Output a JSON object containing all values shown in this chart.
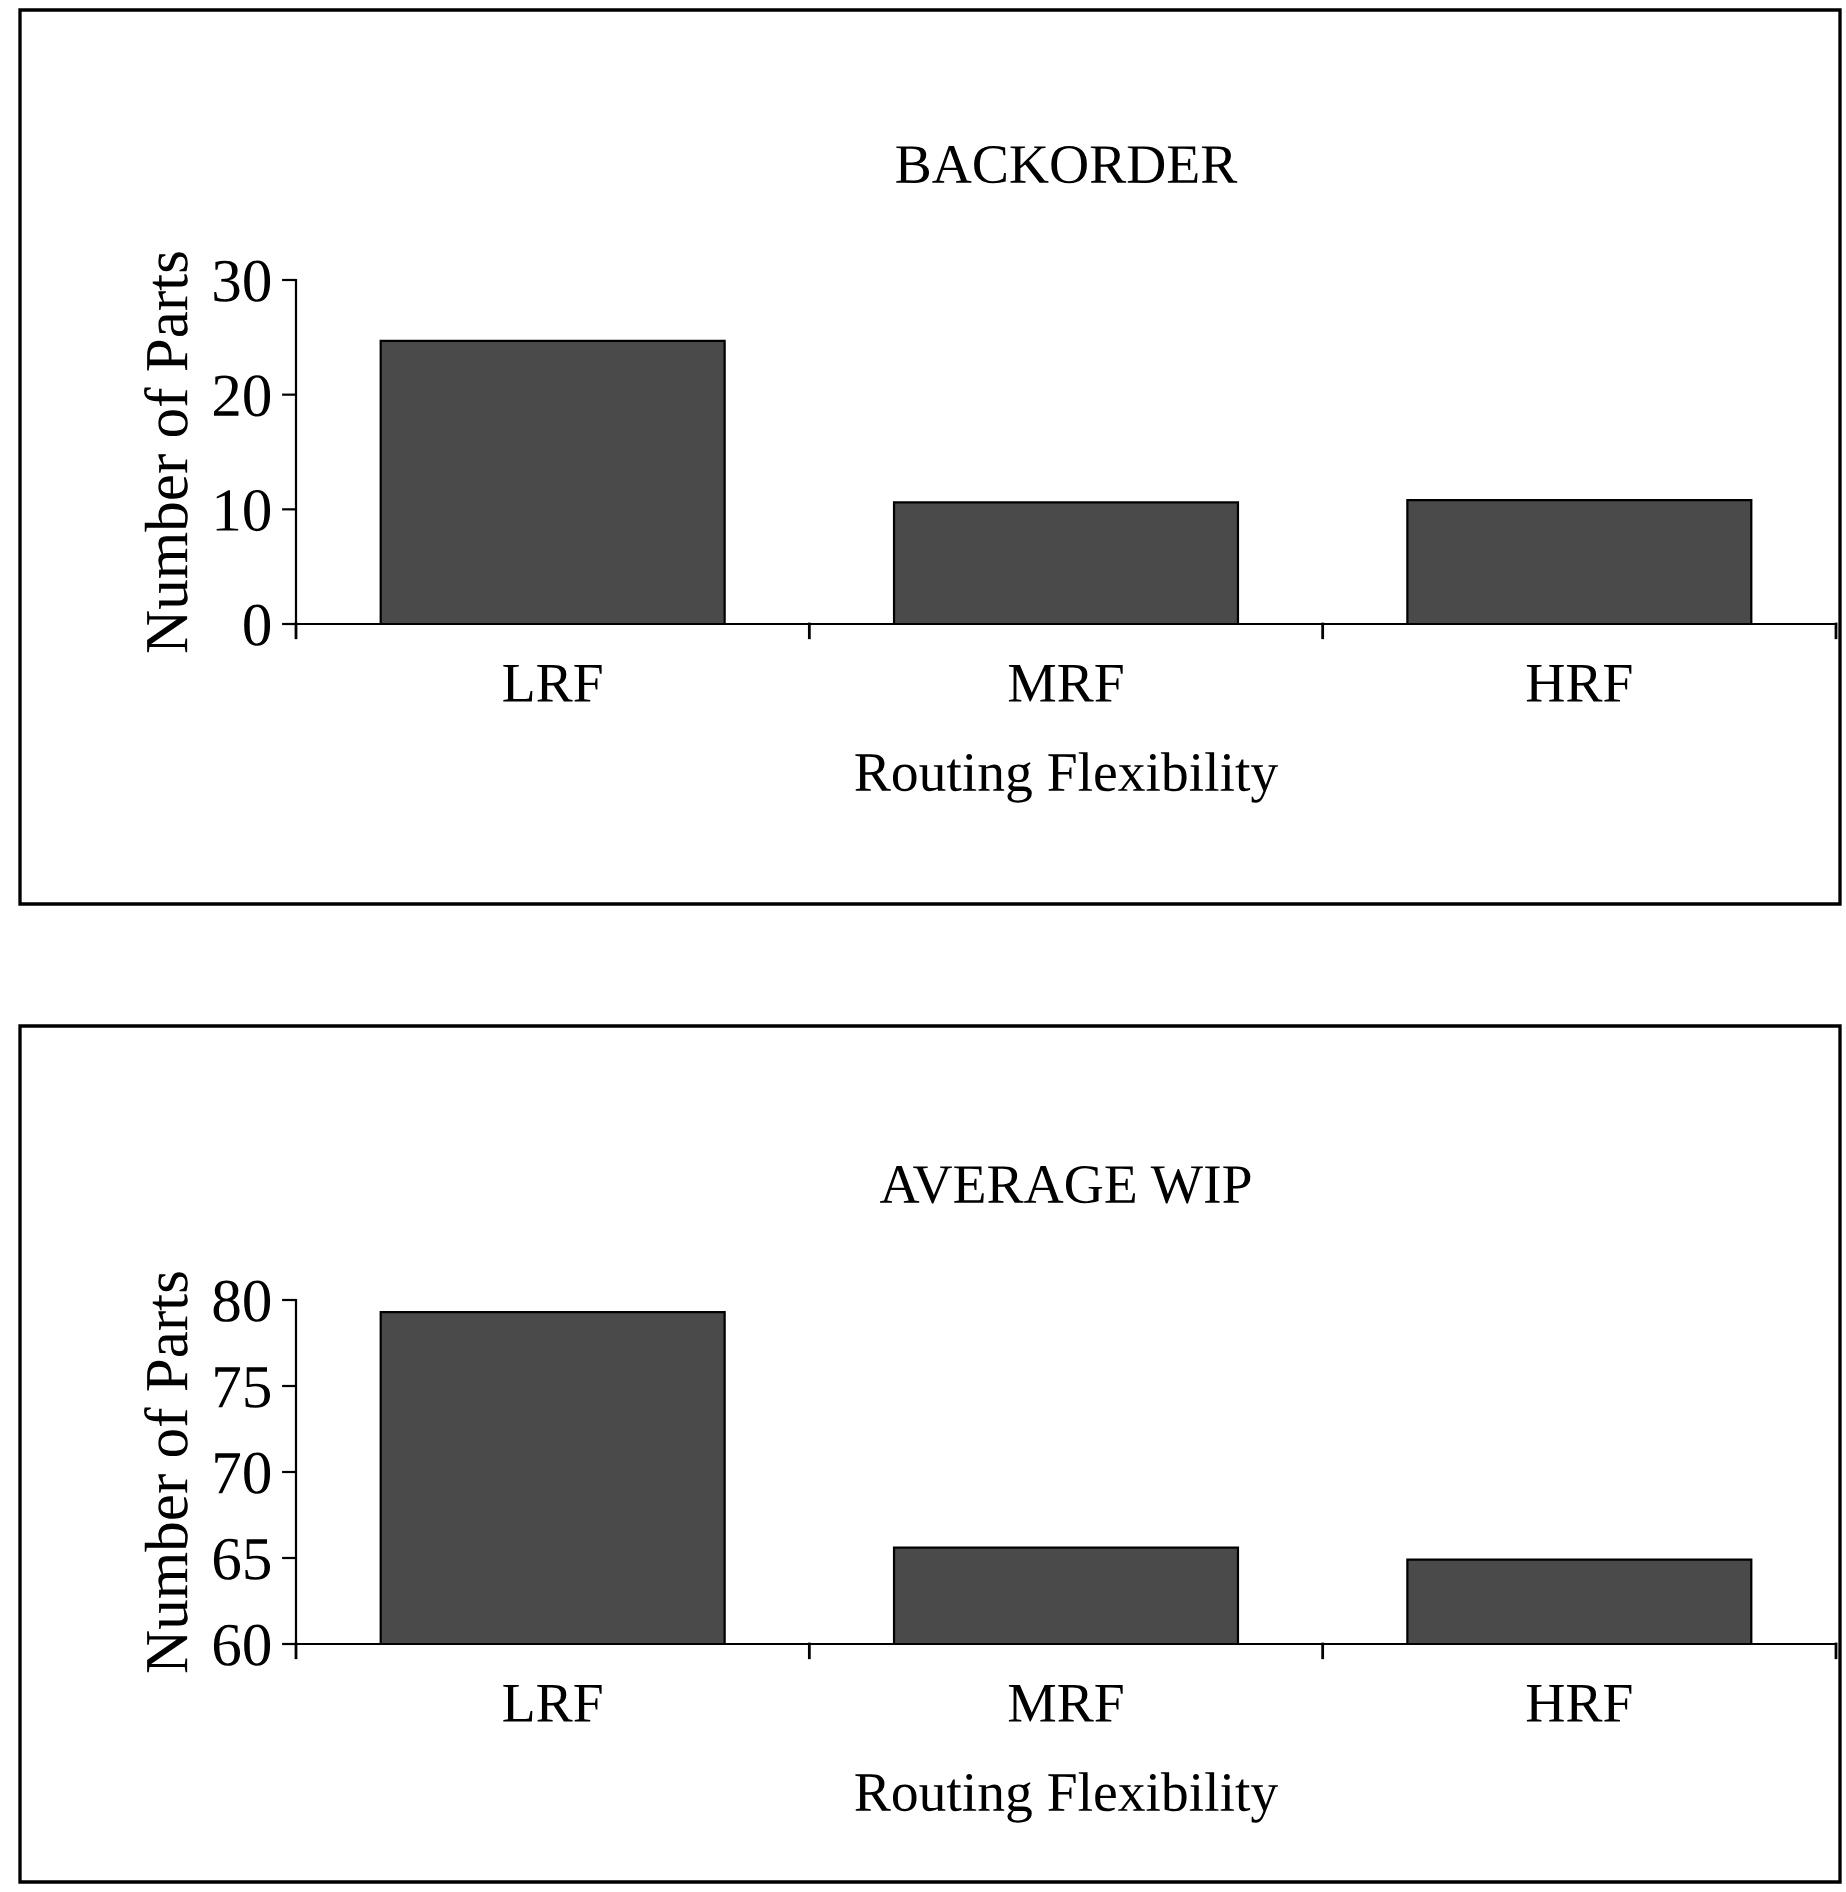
{
  "chart_data": [
    {
      "type": "bar",
      "title": "BACKORDER",
      "xlabel": "Routing Flexibility",
      "ylabel": "Number of Parts",
      "categories": [
        "LRF",
        "MRF",
        "HRF"
      ],
      "values": [
        24.7,
        10.6,
        10.8
      ],
      "color": "#4a4a4a",
      "ylim": [
        0,
        30
      ],
      "yticks": [
        0,
        10,
        20,
        30
      ],
      "grid": false,
      "legend": false
    },
    {
      "type": "bar",
      "title": "AVERAGE WIP",
      "xlabel": "Routing Flexibility",
      "ylabel": "Number of Parts",
      "categories": [
        "LRF",
        "MRF",
        "HRF"
      ],
      "values": [
        79.3,
        65.6,
        64.9
      ],
      "color": "#4a4a4a",
      "ylim": [
        60,
        80
      ],
      "yticks": [
        60,
        65,
        70,
        75,
        80
      ],
      "grid": false,
      "legend": false
    }
  ]
}
